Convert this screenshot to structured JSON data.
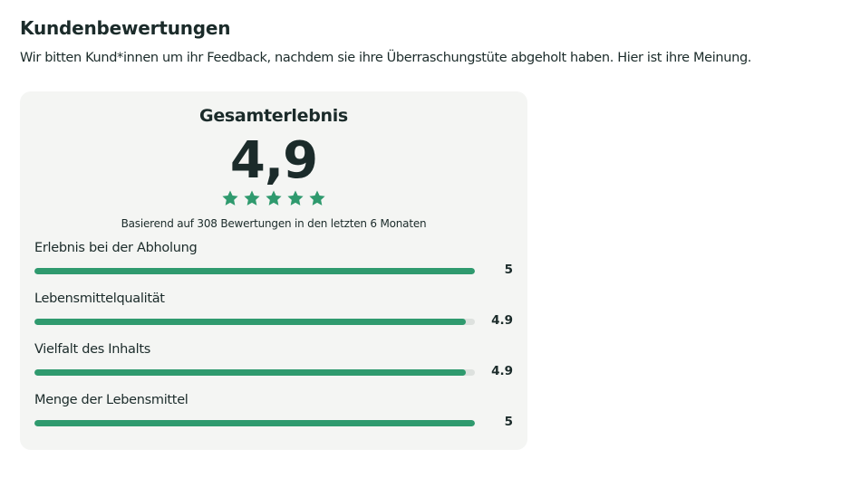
{
  "header": {
    "title": "Kundenbewertungen",
    "subtitle": "Wir bitten Kund*innen um ihr Feedback, nachdem sie ihre Überraschungstüte abgeholt haben. Hier ist ihre Meinung."
  },
  "overall": {
    "heading": "Gesamterlebnis",
    "score": "4,9",
    "stars": 5,
    "star_color": "#2f9a6e",
    "based_on": "Basierend auf 308 Bewertungen in den letzten 6 Monaten"
  },
  "ratings": [
    {
      "label": "Erlebnis bei der Abholung",
      "value": "5",
      "fraction": 1.0
    },
    {
      "label": "Lebensmittelqualität",
      "value": "4.9",
      "fraction": 0.98
    },
    {
      "label": "Vielfalt des Inhalts",
      "value": "4.9",
      "fraction": 0.98
    },
    {
      "label": "Menge der Lebensmittel",
      "value": "5",
      "fraction": 1.0
    }
  ],
  "colors": {
    "accent": "#2f9a6e",
    "card_background": "#f4f5f3",
    "track": "#dde1de",
    "text": "#1b2b2a"
  }
}
